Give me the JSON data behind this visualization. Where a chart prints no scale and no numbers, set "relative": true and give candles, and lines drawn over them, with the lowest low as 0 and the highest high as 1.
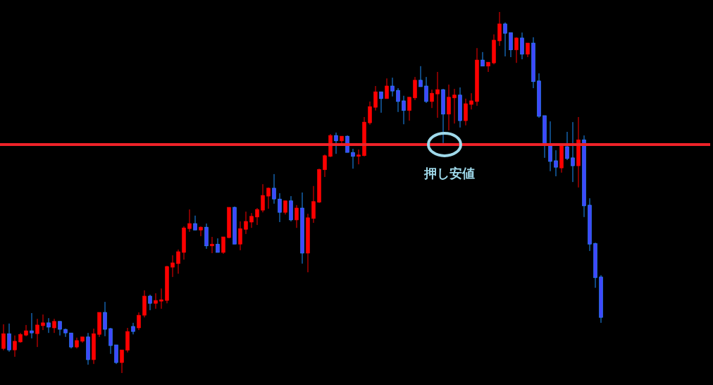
{
  "chart_data": {
    "type": "candlestick",
    "relative": true,
    "categories": [
      null,
      null,
      null,
      null,
      null,
      null,
      null,
      null,
      null,
      null,
      null,
      null,
      null,
      null,
      null,
      null,
      null,
      null,
      null,
      null,
      null,
      null,
      null,
      null,
      null,
      null,
      null,
      null,
      null,
      null,
      null,
      null,
      null,
      null,
      null,
      null,
      null,
      null,
      null,
      null,
      null,
      null,
      null,
      null,
      null,
      null,
      null,
      null,
      null,
      null,
      null,
      null,
      null,
      null,
      null,
      null,
      null,
      null,
      null,
      null,
      null,
      null,
      null,
      null,
      null,
      null,
      null,
      null,
      null,
      null,
      null,
      null,
      null,
      null,
      null,
      null,
      null,
      null,
      null,
      null,
      null,
      null,
      null,
      null,
      null,
      null,
      null,
      null,
      null,
      null,
      null,
      null,
      null,
      null,
      null,
      null,
      null,
      null,
      null,
      null,
      null,
      null,
      null,
      null,
      null,
      null,
      null
    ],
    "ohlc": [
      [
        0.068,
        0.135,
        0.063,
        0.109
      ],
      [
        0.109,
        0.137,
        0.059,
        0.064
      ],
      [
        0.064,
        0.104,
        0.045,
        0.088
      ],
      [
        0.086,
        0.111,
        0.084,
        0.107
      ],
      [
        0.105,
        0.133,
        0.102,
        0.117
      ],
      [
        0.117,
        0.166,
        0.096,
        0.111
      ],
      [
        0.109,
        0.15,
        0.072,
        0.133
      ],
      [
        0.131,
        0.162,
        0.119,
        0.139
      ],
      [
        0.139,
        0.152,
        0.111,
        0.127
      ],
      [
        0.125,
        0.15,
        0.111,
        0.143
      ],
      [
        0.143,
        0.143,
        0.104,
        0.121
      ],
      [
        0.121,
        0.123,
        0.1,
        0.111
      ],
      [
        0.111,
        0.111,
        0.068,
        0.072
      ],
      [
        0.072,
        0.098,
        0.068,
        0.09
      ],
      [
        0.088,
        0.1,
        0.084,
        0.1
      ],
      [
        0.1,
        0.111,
        0.023,
        0.037
      ],
      [
        0.037,
        0.123,
        0.025,
        0.109
      ],
      [
        0.107,
        0.168,
        0.1,
        0.168
      ],
      [
        0.168,
        0.197,
        0.102,
        0.121
      ],
      [
        0.123,
        0.125,
        0.053,
        0.076
      ],
      [
        0.078,
        0.078,
        0.025,
        0.029
      ],
      [
        0.029,
        0.064,
        0,
        0.064
      ],
      [
        0.063,
        0.125,
        0.057,
        0.115
      ],
      [
        0.129,
        0.139,
        0.107,
        0.115
      ],
      [
        0.125,
        0.168,
        0.119,
        0.16
      ],
      [
        0.16,
        0.229,
        0.154,
        0.213
      ],
      [
        0.213,
        0.217,
        0.174,
        0.193
      ],
      [
        0.193,
        0.221,
        0.178,
        0.201
      ],
      [
        0.199,
        0.234,
        0.178,
        0.203
      ],
      [
        0.201,
        0.297,
        0.193,
        0.295
      ],
      [
        0.293,
        0.326,
        0.266,
        0.305
      ],
      [
        0.303,
        0.342,
        0.275,
        0.336
      ],
      [
        0.334,
        0.406,
        0.314,
        0.402
      ],
      [
        0.4,
        0.453,
        0.391,
        0.414
      ],
      [
        0.414,
        0.436,
        0.396,
        0.396
      ],
      [
        0.396,
        0.406,
        0.379,
        0.404
      ],
      [
        0.404,
        0.414,
        0.344,
        0.352
      ],
      [
        0.352,
        0.377,
        0.332,
        0.357
      ],
      [
        0.357,
        0.373,
        0.334,
        0.334
      ],
      [
        0.334,
        0.377,
        0.33,
        0.377
      ],
      [
        0.375,
        0.459,
        0.373,
        0.459
      ],
      [
        0.459,
        0.461,
        0.357,
        0.357
      ],
      [
        0.357,
        0.42,
        0.34,
        0.4
      ],
      [
        0.398,
        0.447,
        0.385,
        0.42
      ],
      [
        0.418,
        0.443,
        0.402,
        0.434
      ],
      [
        0.432,
        0.457,
        0.41,
        0.453
      ],
      [
        0.451,
        0.523,
        0.445,
        0.492
      ],
      [
        0.49,
        0.514,
        0.455,
        0.512
      ],
      [
        0.512,
        0.551,
        0.469,
        0.482
      ],
      [
        0.482,
        0.498,
        0.418,
        0.445
      ],
      [
        0.445,
        0.477,
        0.439,
        0.477
      ],
      [
        0.477,
        0.49,
        0.42,
        0.424
      ],
      [
        0.424,
        0.465,
        0.402,
        0.457
      ],
      [
        0.457,
        0.5,
        0.303,
        0.332
      ],
      [
        0.332,
        0.441,
        0.279,
        0.43
      ],
      [
        0.428,
        0.518,
        0.416,
        0.475
      ],
      [
        0.473,
        0.566,
        0.471,
        0.564
      ],
      [
        0.563,
        0.605,
        0.543,
        0.602
      ],
      [
        0.6,
        0.662,
        0.598,
        0.658
      ],
      [
        0.658,
        0.666,
        0.607,
        0.643
      ],
      [
        0.643,
        0.656,
        0.637,
        0.656
      ],
      [
        0.656,
        0.658,
        0.611,
        0.611
      ],
      [
        0.611,
        0.621,
        0.566,
        0.6
      ],
      [
        0.6,
        0.619,
        0.578,
        0.604
      ],
      [
        0.602,
        0.709,
        0.6,
        0.695
      ],
      [
        0.693,
        0.752,
        0.688,
        0.738
      ],
      [
        0.736,
        0.795,
        0.727,
        0.779
      ],
      [
        0.779,
        0.779,
        0.721,
        0.76
      ],
      [
        0.76,
        0.816,
        0.76,
        0.795
      ],
      [
        0.795,
        0.818,
        0.766,
        0.781
      ],
      [
        0.783,
        0.789,
        0.723,
        0.752
      ],
      [
        0.754,
        0.768,
        0.689,
        0.727
      ],
      [
        0.727,
        0.764,
        0.699,
        0.764
      ],
      [
        0.762,
        0.82,
        0.756,
        0.811
      ],
      [
        0.811,
        0.85,
        0.793,
        0.793
      ],
      [
        0.795,
        0.82,
        0.748,
        0.752
      ],
      [
        0.752,
        0.785,
        0.734,
        0.775
      ],
      [
        0.773,
        0.834,
        0.707,
        0.785
      ],
      [
        0.785,
        0.787,
        0.637,
        0.717
      ],
      [
        0.717,
        0.799,
        0.672,
        0.764
      ],
      [
        0.762,
        0.787,
        0.691,
        0.77
      ],
      [
        0.77,
        0.791,
        0.68,
        0.699
      ],
      [
        0.699,
        0.76,
        0.686,
        0.746
      ],
      [
        0.744,
        0.775,
        0.73,
        0.754
      ],
      [
        0.752,
        0.9,
        0.74,
        0.867
      ],
      [
        0.867,
        0.889,
        0.85,
        0.85
      ],
      [
        0.85,
        0.861,
        0.834,
        0.861
      ],
      [
        0.859,
        0.938,
        0.855,
        0.922
      ],
      [
        0.92,
        1,
        0.906,
        0.967
      ],
      [
        0.967,
        0.971,
        0.877,
        0.941
      ],
      [
        0.943,
        0.943,
        0.875,
        0.895
      ],
      [
        0.895,
        0.93,
        0.859,
        0.928
      ],
      [
        0.928,
        0.943,
        0.869,
        0.883
      ],
      [
        0.883,
        0.914,
        0.875,
        0.914
      ],
      [
        0.914,
        0.93,
        0.789,
        0.807
      ],
      [
        0.809,
        0.83,
        0.707,
        0.711
      ],
      [
        0.713,
        0.713,
        0.596,
        0.633
      ],
      [
        0.629,
        0.697,
        0.559,
        0.586
      ],
      [
        0.588,
        0.617,
        0.545,
        0.57
      ],
      [
        0.568,
        0.633,
        0.555,
        0.633
      ],
      [
        0.627,
        0.668,
        0.59,
        0.594
      ],
      [
        0.596,
        0.695,
        0.529,
        0.574
      ],
      [
        0.574,
        0.709,
        0.514,
        0.646
      ],
      [
        0.646,
        0.658,
        0.432,
        0.463
      ],
      [
        0.465,
        0.484,
        0.338,
        0.357
      ],
      [
        0.359,
        0.361,
        0.236,
        0.264
      ],
      [
        0.266,
        0.271,
        0.139,
        0.154
      ]
    ],
    "ref_lines": [
      {
        "axis": "y",
        "value": 0.633,
        "color": "#ee2229"
      }
    ],
    "annotations": [
      {
        "text": "押し安値",
        "y": 0.633
      }
    ]
  }
}
